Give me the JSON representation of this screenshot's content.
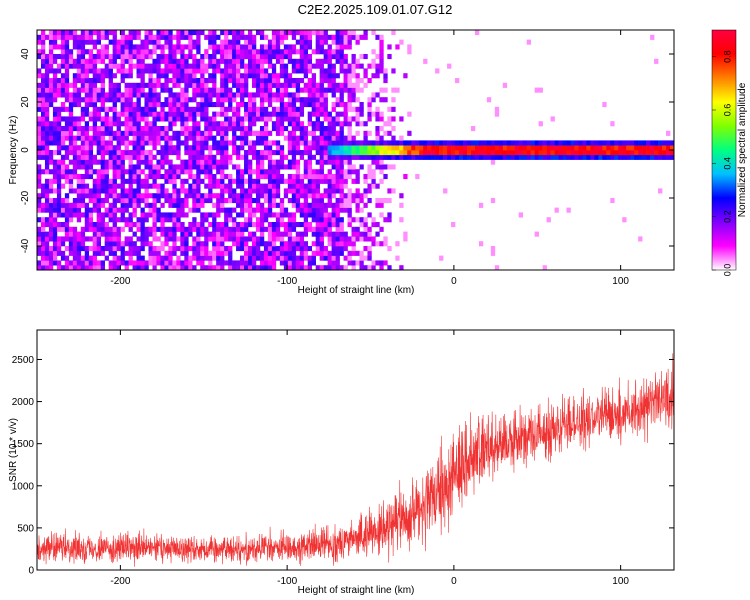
{
  "title": "C2E2.2025.109.01.07.G12",
  "colorbar": {
    "label": "Normalized spectral amplitude",
    "ticks": [
      "0.0",
      "0.2",
      "0.4",
      "0.6",
      "0.8"
    ],
    "tick_values": [
      0.0,
      0.2,
      0.4,
      0.6,
      0.8
    ],
    "range": [
      0.0,
      0.9
    ],
    "colormap": [
      "#ffffff",
      "#ff00ff",
      "#8000ff",
      "#0000ff",
      "#00c0ff",
      "#00ff80",
      "#80ff00",
      "#ffff00",
      "#ff8000",
      "#ff0000",
      "#ff0040"
    ]
  },
  "chart_data": [
    {
      "type": "heatmap",
      "xlabel": "Height of straight line (km)",
      "ylabel": "Frequency (Hz)",
      "xlim": [
        -250,
        132
      ],
      "ylim": [
        -50,
        50
      ],
      "x_ticks": [
        -200,
        -100,
        0,
        100
      ],
      "x_tick_labels": [
        "-200",
        "-100",
        "0",
        "100"
      ],
      "y_ticks": [
        -40,
        -20,
        0,
        20,
        40
      ],
      "y_tick_labels": [
        "-40",
        "-20",
        "0",
        "20",
        "40"
      ],
      "grid": false,
      "noise_region": {
        "x_range": [
          -250,
          -65
        ],
        "amplitude": 0.2
      },
      "fade_region": {
        "x_range": [
          -65,
          -25
        ],
        "amplitude": 0.1
      },
      "signal_band": {
        "frequency_hz": 0,
        "half_width_hz": 3,
        "x_start": -75,
        "core_amplitude": 0.9
      }
    },
    {
      "type": "line",
      "xlabel": "Height of straight line (km)",
      "ylabel": "SNR (10 * v/v)",
      "xlim": [
        -250,
        132
      ],
      "ylim": [
        0,
        2850
      ],
      "x_ticks": [
        -200,
        -100,
        0,
        100
      ],
      "x_tick_labels": [
        "-200",
        "-100",
        "0",
        "100"
      ],
      "y_ticks": [
        0,
        500,
        1000,
        1500,
        2000,
        2500
      ],
      "y_tick_labels": [
        "0",
        "500",
        "1000",
        "1500",
        "2000",
        "2500"
      ],
      "grid": false,
      "series": [
        {
          "color": "#f03232",
          "envelope": {
            "x": [
              -250,
              -200,
              -150,
              -100,
              -70,
              -50,
              -30,
              -15,
              -5,
              0,
              5,
              10,
              20,
              30,
              50,
              75,
              100,
              120,
              132
            ],
            "mean": [
              260,
              260,
              250,
              260,
              320,
              420,
              600,
              800,
              900,
              1200,
              1250,
              1300,
              1450,
              1500,
              1600,
              1750,
              1850,
              2000,
              2050
            ],
            "spread": [
              160,
              160,
              160,
              170,
              200,
              260,
              330,
              420,
              520,
              550,
              500,
              430,
              360,
              320,
              310,
              310,
              320,
              340,
              360
            ]
          }
        }
      ]
    }
  ]
}
